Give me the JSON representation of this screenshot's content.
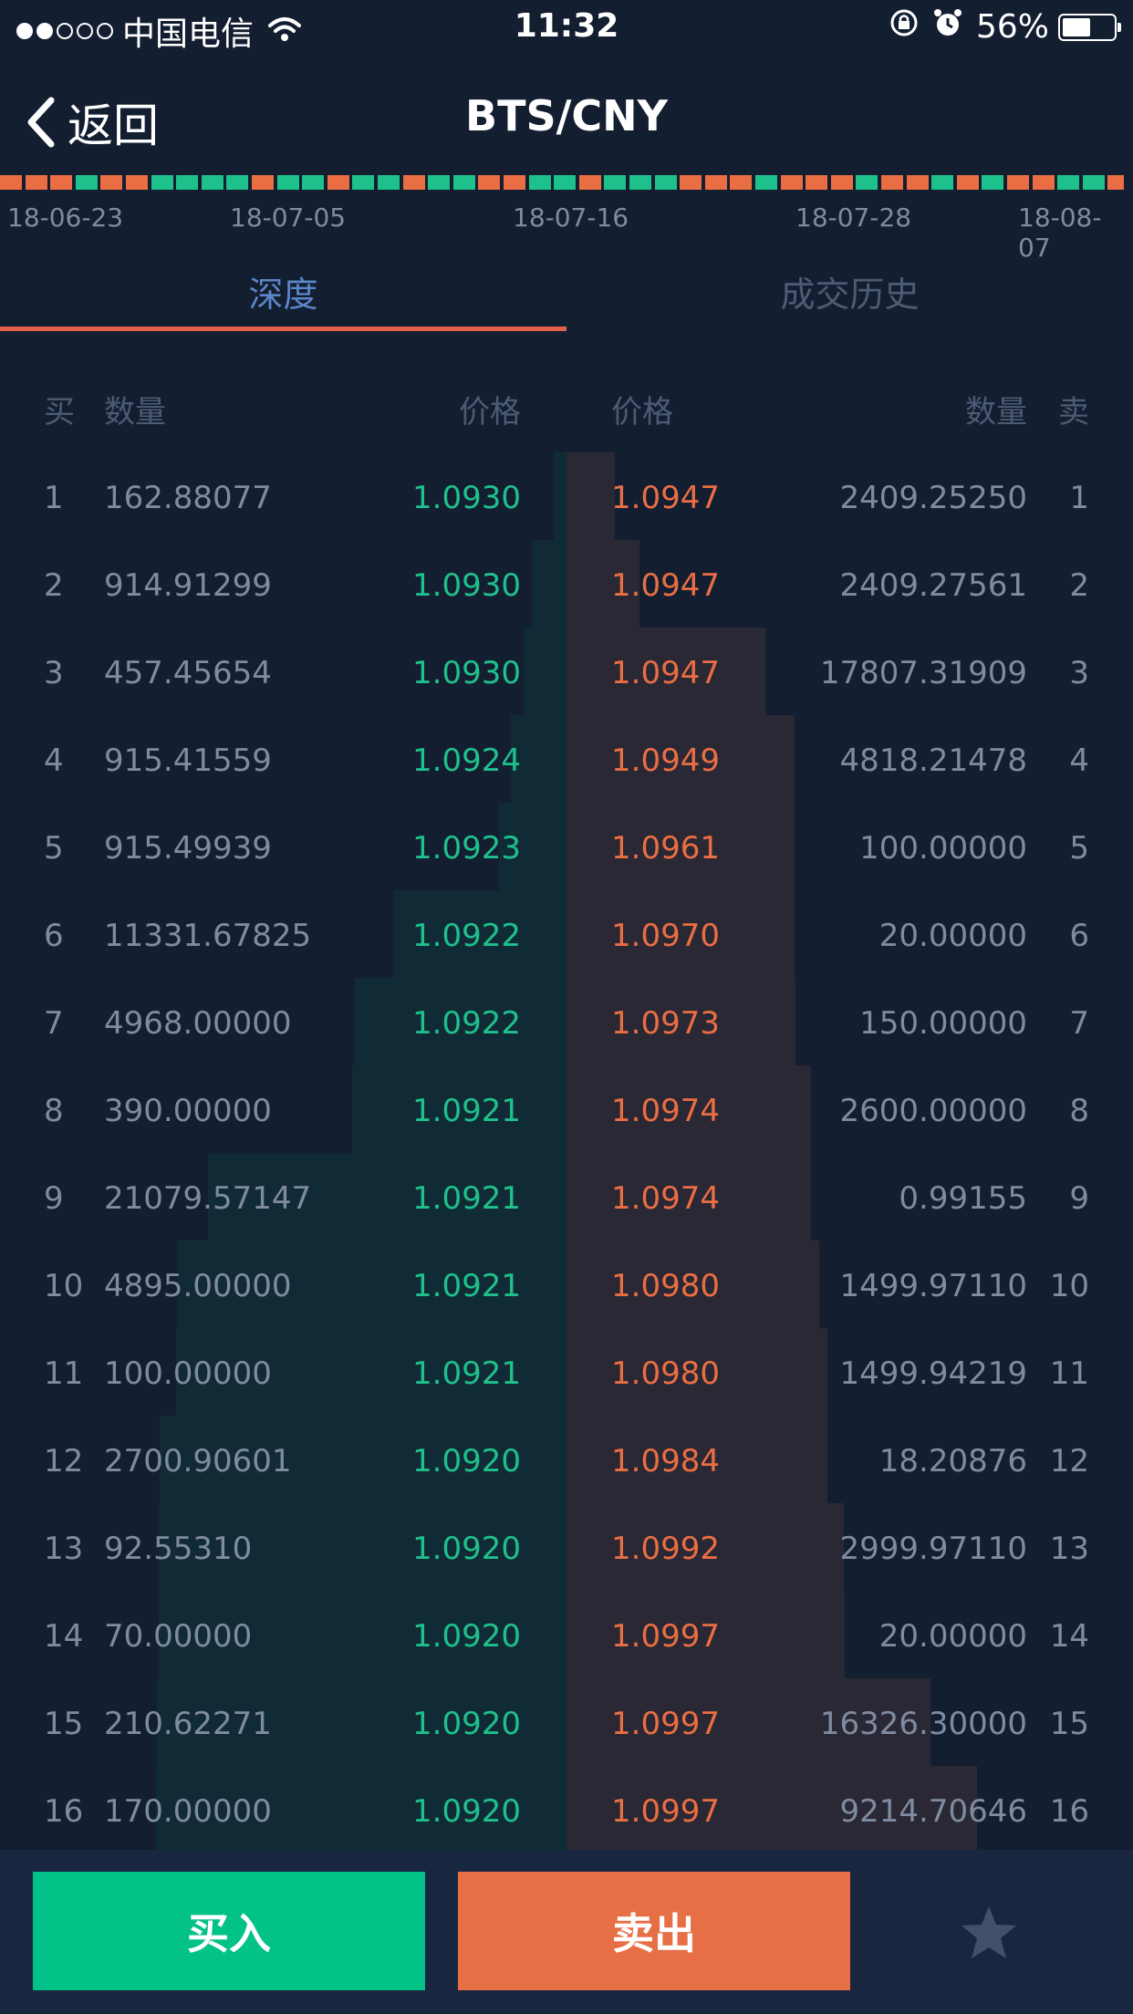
{
  "status": {
    "signal_dots": 5,
    "signal_filled": 2,
    "carrier": "中国电信",
    "time": "11:32",
    "battery": "56%",
    "battery_level": 0.56
  },
  "nav": {
    "back_label": "返回",
    "title": "BTS/CNY"
  },
  "strip": {
    "colors": {
      "up": "#1ec08b",
      "down": "#ea6e43"
    },
    "pattern": [
      "down",
      "down",
      "down",
      "up",
      "down",
      "down",
      "up",
      "up",
      "up",
      "up",
      "down",
      "up",
      "up",
      "down",
      "up",
      "up",
      "down",
      "up",
      "up",
      "down",
      "down",
      "up",
      "up",
      "down",
      "up",
      "up",
      "up",
      "down",
      "down",
      "down",
      "up",
      "down",
      "down",
      "down",
      "up",
      "down",
      "down",
      "up",
      "down",
      "up",
      "down",
      "down",
      "up",
      "up",
      "down"
    ],
    "dates": [
      "18-06-23",
      "18-07-05",
      "18-07-16",
      "18-07-28",
      "18-08-07"
    ]
  },
  "tabs": [
    {
      "label": "深度",
      "active": true
    },
    {
      "label": "成交历史",
      "active": false
    }
  ],
  "table": {
    "headers": {
      "buy": "买",
      "buy_qty": "数量",
      "buy_price": "价格",
      "sell_price": "价格",
      "sell_qty": "数量",
      "sell": "卖"
    },
    "rows": [
      {
        "i": "1",
        "bq": "162.88077",
        "bp": "1.0930",
        "ap": "1.0947",
        "aq": "2409.25250"
      },
      {
        "i": "2",
        "bq": "914.91299",
        "bp": "1.0930",
        "ap": "1.0947",
        "aq": "2409.27561"
      },
      {
        "i": "3",
        "bq": "457.45654",
        "bp": "1.0930",
        "ap": "1.0947",
        "aq": "17807.31909"
      },
      {
        "i": "4",
        "bq": "915.41559",
        "bp": "1.0924",
        "ap": "1.0949",
        "aq": "4818.21478"
      },
      {
        "i": "5",
        "bq": "915.49939",
        "bp": "1.0923",
        "ap": "1.0961",
        "aq": "100.00000"
      },
      {
        "i": "6",
        "bq": "11331.67825",
        "bp": "1.0922",
        "ap": "1.0970",
        "aq": "20.00000"
      },
      {
        "i": "7",
        "bq": "4968.00000",
        "bp": "1.0922",
        "ap": "1.0973",
        "aq": "150.00000"
      },
      {
        "i": "8",
        "bq": "390.00000",
        "bp": "1.0921",
        "ap": "1.0974",
        "aq": "2600.00000"
      },
      {
        "i": "9",
        "bq": "21079.57147",
        "bp": "1.0921",
        "ap": "1.0974",
        "aq": "0.99155"
      },
      {
        "i": "10",
        "bq": "4895.00000",
        "bp": "1.0921",
        "ap": "1.0980",
        "aq": "1499.97110"
      },
      {
        "i": "11",
        "bq": "100.00000",
        "bp": "1.0921",
        "ap": "1.0980",
        "aq": "1499.94219"
      },
      {
        "i": "12",
        "bq": "2700.90601",
        "bp": "1.0920",
        "ap": "1.0984",
        "aq": "18.20876"
      },
      {
        "i": "13",
        "bq": "92.55310",
        "bp": "1.0920",
        "ap": "1.0992",
        "aq": "2999.97110"
      },
      {
        "i": "14",
        "bq": "70.00000",
        "bp": "1.0920",
        "ap": "1.0997",
        "aq": "20.00000"
      },
      {
        "i": "15",
        "bq": "210.62271",
        "bp": "1.0920",
        "ap": "1.0997",
        "aq": "16326.30000"
      },
      {
        "i": "16",
        "bq": "170.00000",
        "bp": "1.0920",
        "ap": "1.0997",
        "aq": "9214.70646"
      }
    ]
  },
  "bottom": {
    "buy_label": "买入",
    "sell_label": "卖出",
    "buy_color": "#03c287",
    "sell_color": "#e76f45"
  }
}
